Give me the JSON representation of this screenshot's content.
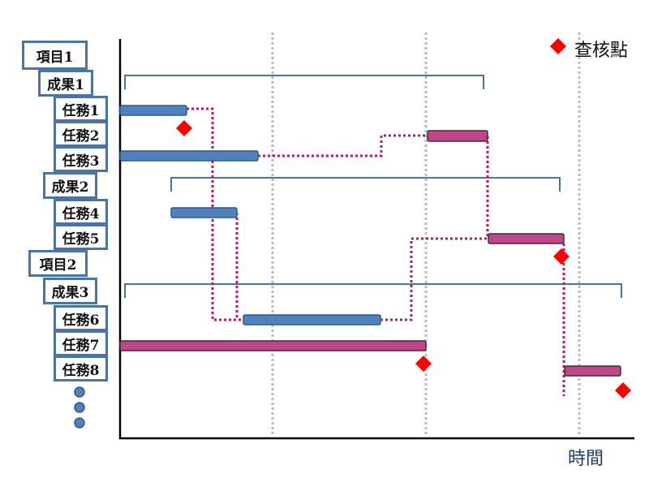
{
  "labels": [
    "項目1",
    "成果1",
    "任務1",
    "任務2",
    "任務3",
    "成果2",
    "任務4",
    "任務5",
    "項目2",
    "成果3",
    "任務6",
    "任務7",
    "任務8"
  ],
  "legend": {
    "label": "查核點",
    "icon": "red-diamond"
  },
  "x_axis_label": "時間",
  "colors": {
    "task_blue": "#4F81BD",
    "task_pink": "#C0458A",
    "dependency": "#C0185A",
    "milestone": "#FF0000",
    "label_border": "#4A74A8",
    "gridline": "#BBBBBB"
  }
}
